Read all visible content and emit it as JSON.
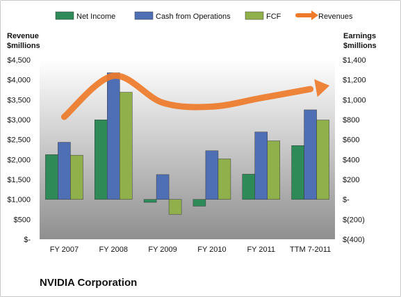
{
  "caption": "NVIDIA Corporation",
  "chart_data": {
    "type": "bar",
    "categories": [
      "FY 2007",
      "FY 2008",
      "FY 2009",
      "FY 2010",
      "FY 2011",
      "TTM 7-2011"
    ],
    "series": [
      {
        "name": "Net Income",
        "axis": "right",
        "color": "#2e8b57",
        "values": [
          449,
          798,
          -30,
          -68,
          253,
          540
        ]
      },
      {
        "name": "Cash from Operations",
        "axis": "right",
        "color": "#4f6fb5",
        "values": [
          573,
          1270,
          249,
          488,
          676,
          898
        ]
      },
      {
        "name": "FCF",
        "axis": "right",
        "color": "#8fb04a",
        "values": [
          443,
          1075,
          -150,
          406,
          587,
          796
        ]
      },
      {
        "name": "Revenues",
        "axis": "left",
        "type": "line",
        "color": "#ee7a2a",
        "values": [
          3069,
          4098,
          3425,
          3326,
          3543,
          3766
        ]
      }
    ],
    "left_axis": {
      "title_line1": "Revenue",
      "title_line2": "$millions",
      "ylim": [
        0,
        4500
      ],
      "ticks": [
        0,
        500,
        1000,
        1500,
        2000,
        2500,
        3000,
        3500,
        4000,
        4500
      ],
      "tick_labels": [
        "$-",
        "$500",
        "$1,000",
        "$1,500",
        "$2,000",
        "$2,500",
        "$3,000",
        "$3,500",
        "$4,000",
        "$4,500"
      ]
    },
    "right_axis": {
      "title_line1": "Earnings",
      "title_line2": "$millions",
      "ylim": [
        -400,
        1400
      ],
      "ticks": [
        -400,
        -200,
        0,
        200,
        400,
        600,
        800,
        1000,
        1200,
        1400
      ],
      "tick_labels": [
        "$(400)",
        "$(200)",
        "$-",
        "$200",
        "$400",
        "$600",
        "$800",
        "$1,000",
        "$1,200",
        "$1,400"
      ]
    },
    "legend_position": "top",
    "grid": false
  }
}
